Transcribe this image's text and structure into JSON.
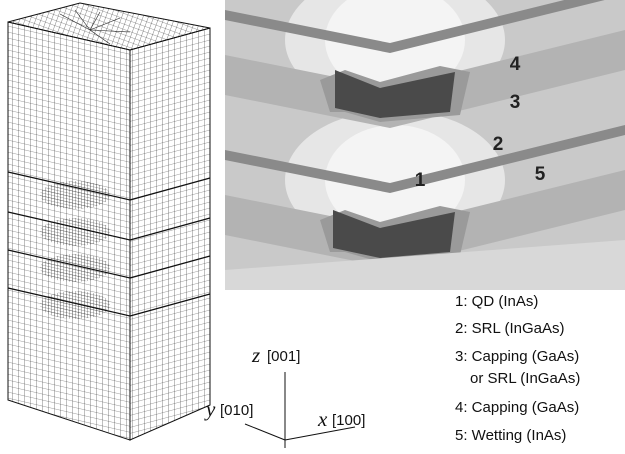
{
  "region_labels": [
    "1",
    "2",
    "3",
    "4",
    "5"
  ],
  "legend": [
    "1: QD (InAs)",
    "2: SRL (InGaAs)",
    "3: Capping (GaAs)",
    "or SRL (InGaAs)",
    "4: Capping (GaAs)",
    "5: Wetting (InAs)"
  ],
  "axes": {
    "z": {
      "letter": "z",
      "index": "[001]"
    },
    "y": {
      "letter": "y",
      "index": "[010]"
    },
    "x": {
      "letter": "x",
      "index": "[100]"
    }
  }
}
